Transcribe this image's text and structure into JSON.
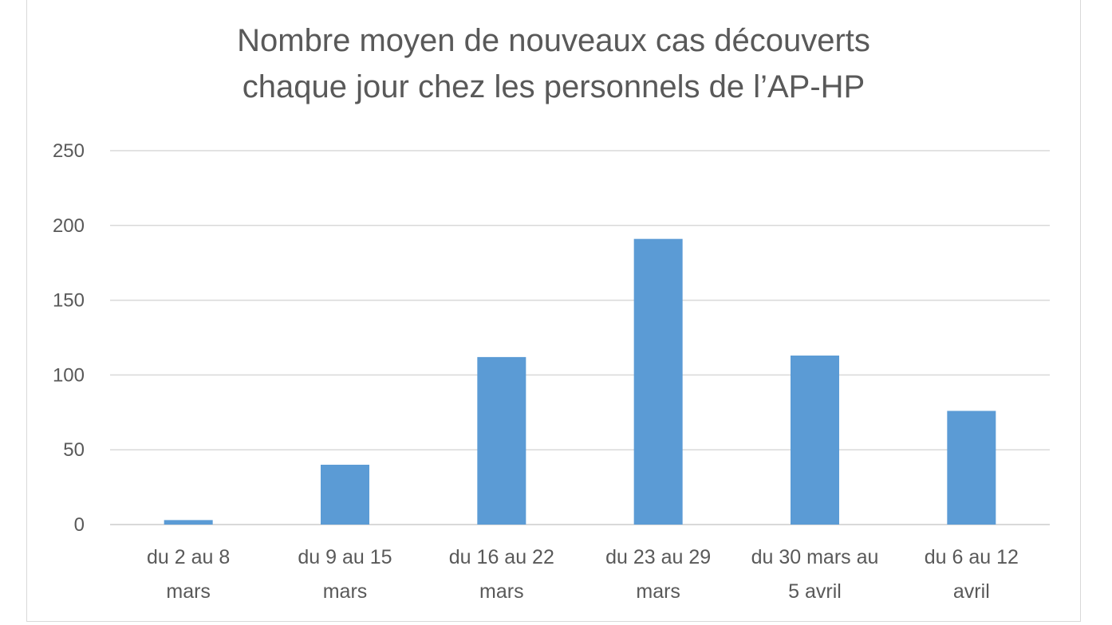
{
  "chart_data": {
    "type": "bar",
    "title_lines": [
      "Nombre moyen de nouveaux cas découverts",
      "chaque jour chez les personnels de l’AP-HP"
    ],
    "categories": [
      [
        "du 2 au 8",
        "mars"
      ],
      [
        "du 9 au 15",
        "mars"
      ],
      [
        "du 16 au 22",
        "mars"
      ],
      [
        "du 23 au 29",
        "mars"
      ],
      [
        "du 30 mars au",
        "5 avril"
      ],
      [
        "du 6 au 12",
        "avril"
      ]
    ],
    "values": [
      3,
      40,
      112,
      191,
      113,
      76
    ],
    "yticks": [
      "0",
      "50",
      "100",
      "150",
      "200",
      "250"
    ],
    "ylim": [
      0,
      250
    ],
    "grid": true,
    "bar_color": "#5b9bd5",
    "grid_color": "#d9d9d9",
    "text_color": "#595959"
  }
}
